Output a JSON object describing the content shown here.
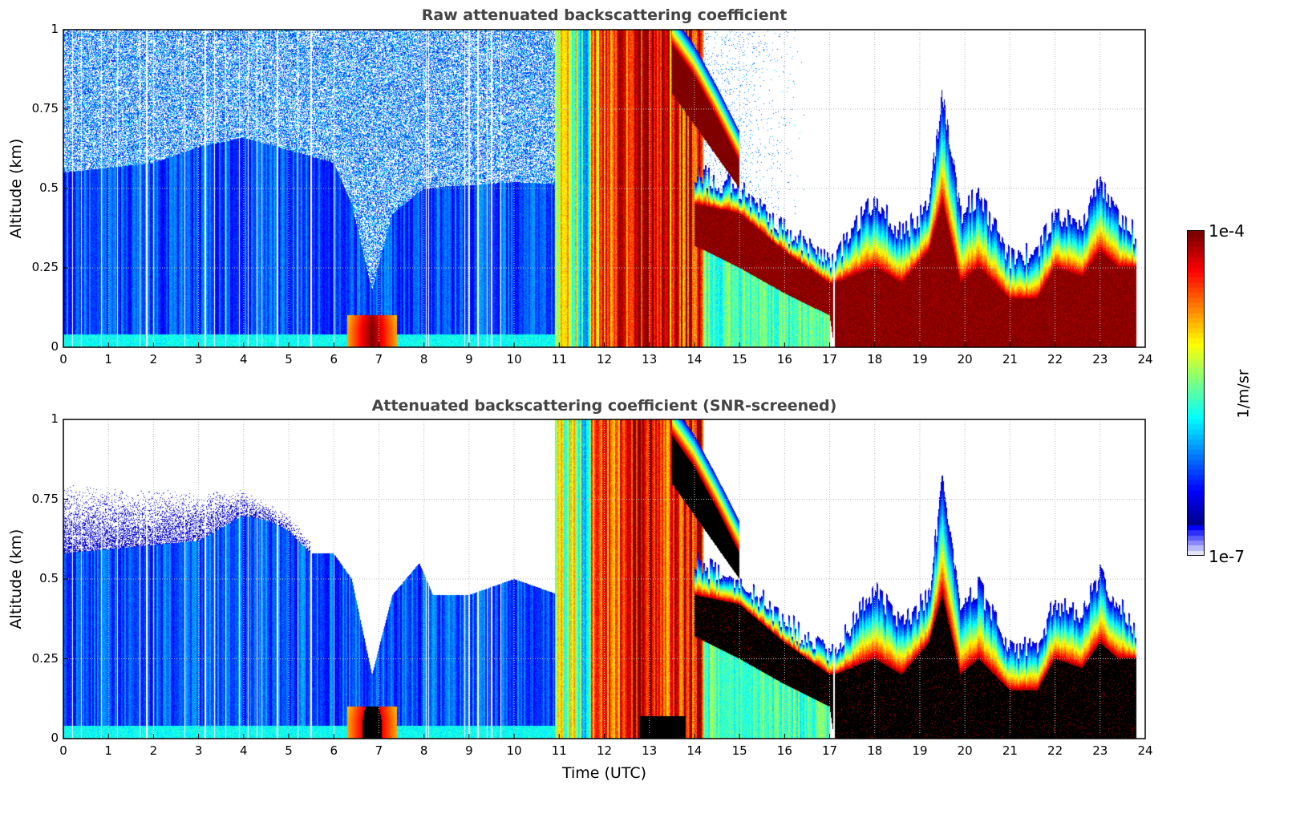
{
  "chart_data": [
    {
      "type": "heatmap",
      "mode": "raw",
      "title": "Raw attenuated backscattering coefficient",
      "xlabel": "",
      "ylabel": "Altitude (km)",
      "xlim": [
        0,
        24
      ],
      "ylim": [
        0,
        1
      ],
      "x_ticks": [
        "0",
        "1",
        "2",
        "3",
        "4",
        "5",
        "6",
        "7",
        "8",
        "9",
        "10",
        "11",
        "12",
        "13",
        "14",
        "15",
        "16",
        "17",
        "18",
        "19",
        "20",
        "21",
        "22",
        "23",
        "24"
      ],
      "y_ticks": [
        "0",
        "0.25",
        "0.5",
        "0.75",
        "1"
      ],
      "grid": true,
      "noise_until_utc": 16.5,
      "background_top_km": [
        [
          0,
          0.55
        ],
        [
          2,
          0.58
        ],
        [
          3,
          0.63
        ],
        [
          4,
          0.66
        ],
        [
          5,
          0.62
        ],
        [
          6,
          0.58
        ],
        [
          6.4,
          0.45
        ],
        [
          6.85,
          0.18
        ],
        [
          7.3,
          0.42
        ],
        [
          8,
          0.5
        ],
        [
          10,
          0.52
        ],
        [
          12.6,
          0.5
        ]
      ],
      "background_log10_beta": -6.2
    },
    {
      "type": "heatmap",
      "mode": "screened",
      "title": "Attenuated backscattering coefficient (SNR-screened)",
      "xlabel": "Time (UTC)",
      "ylabel": "Altitude (km)",
      "xlim": [
        0,
        24
      ],
      "ylim": [
        0,
        1
      ],
      "x_ticks": [
        "0",
        "1",
        "2",
        "3",
        "4",
        "5",
        "6",
        "7",
        "8",
        "9",
        "10",
        "11",
        "12",
        "13",
        "14",
        "15",
        "16",
        "17",
        "18",
        "19",
        "20",
        "21",
        "22",
        "23",
        "24"
      ],
      "y_ticks": [
        "0",
        "0.25",
        "0.5",
        "0.75",
        "1"
      ],
      "grid": true,
      "background_top_km": [
        [
          0,
          0.58
        ],
        [
          3,
          0.62
        ],
        [
          4,
          0.7
        ],
        [
          4.6,
          0.68
        ],
        [
          5,
          0.65
        ],
        [
          5.5,
          0.58
        ],
        [
          6,
          0.58
        ],
        [
          6.4,
          0.5
        ],
        [
          6.85,
          0.2
        ],
        [
          7.3,
          0.45
        ],
        [
          7.9,
          0.55
        ],
        [
          8.2,
          0.45
        ],
        [
          9,
          0.45
        ],
        [
          10,
          0.5
        ],
        [
          11,
          0.45
        ],
        [
          12.6,
          0.5
        ]
      ],
      "fringe_top_km": [
        [
          0,
          0.8
        ],
        [
          2,
          0.78
        ],
        [
          4,
          0.78
        ],
        [
          5,
          0.7
        ],
        [
          5.5,
          0.62
        ]
      ],
      "background_log10_beta": -6.2,
      "saturated_shown_black": true
    }
  ],
  "shared_features": {
    "data_gaps_utc": [
      0.2,
      0.4,
      0.85,
      1.2,
      1.7,
      1.85,
      2.0,
      2.7,
      3.15,
      3.35,
      3.6,
      3.9,
      4.1,
      4.3,
      4.4,
      4.75,
      5.2,
      5.5,
      6.0,
      8.05,
      8.1,
      8.9,
      9.0,
      9.2,
      9.4,
      9.5,
      9.7,
      17.1
    ],
    "surface_layer": {
      "top_km": 0.04,
      "log10_beta": -5.7
    },
    "hotspot": {
      "t0": 6.3,
      "t1": 7.4,
      "top_km": 0.1,
      "log10_beta": -4.0
    },
    "columns": [
      {
        "t0": 10.9,
        "t1": 11.4,
        "log10_beta": -5.2
      },
      {
        "t0": 11.4,
        "t1": 11.7,
        "log10_beta": -5.6
      },
      {
        "t0": 11.7,
        "t1": 12.1,
        "log10_beta": -4.7
      },
      {
        "t0": 12.1,
        "t1": 12.5,
        "log10_beta": -4.5
      },
      {
        "t0": 12.5,
        "t1": 12.8,
        "log10_beta": -4.35
      },
      {
        "t0": 12.8,
        "t1": 13.3,
        "log10_beta": -4.2
      },
      {
        "t0": 13.3,
        "t1": 13.8,
        "log10_beta": -4.5
      },
      {
        "t0": 13.8,
        "t1": 14.2,
        "log10_beta": -4.3
      }
    ],
    "upper_layer": [
      [
        13.5,
        0.8,
        0.95
      ],
      [
        14,
        0.7,
        0.85
      ],
      [
        14.5,
        0.6,
        0.72
      ],
      [
        15,
        0.5,
        0.58
      ]
    ],
    "cloud_layer_utc_base_coretop_top_km": [
      [
        14.0,
        0.32,
        0.45,
        0.55
      ],
      [
        15,
        0.25,
        0.42,
        0.5
      ],
      [
        16,
        0.17,
        0.3,
        0.37
      ],
      [
        17,
        0.1,
        0.2,
        0.27
      ],
      [
        17.1,
        0,
        0.2,
        0.28
      ],
      [
        18,
        0,
        0.25,
        0.47
      ],
      [
        18.6,
        0,
        0.2,
        0.35
      ],
      [
        19.2,
        0,
        0.3,
        0.45
      ],
      [
        19.5,
        0,
        0.45,
        0.8
      ],
      [
        19.9,
        0,
        0.2,
        0.42
      ],
      [
        20.3,
        0,
        0.25,
        0.48
      ],
      [
        21,
        0,
        0.15,
        0.28
      ],
      [
        21.6,
        0,
        0.15,
        0.3
      ],
      [
        22,
        0,
        0.25,
        0.42
      ],
      [
        22.6,
        0,
        0.22,
        0.38
      ],
      [
        23,
        0,
        0.3,
        0.52
      ],
      [
        23.4,
        0,
        0.25,
        0.42
      ],
      [
        23.8,
        0,
        0.25,
        0.35
      ]
    ],
    "below_cloud_log10_beta": -5.5
  },
  "colorbar": {
    "label": "1/m/sr",
    "max_label": "1e-4",
    "min_label": "1e-7",
    "range_log10": [
      -7,
      -4
    ],
    "colormap": "jet"
  }
}
